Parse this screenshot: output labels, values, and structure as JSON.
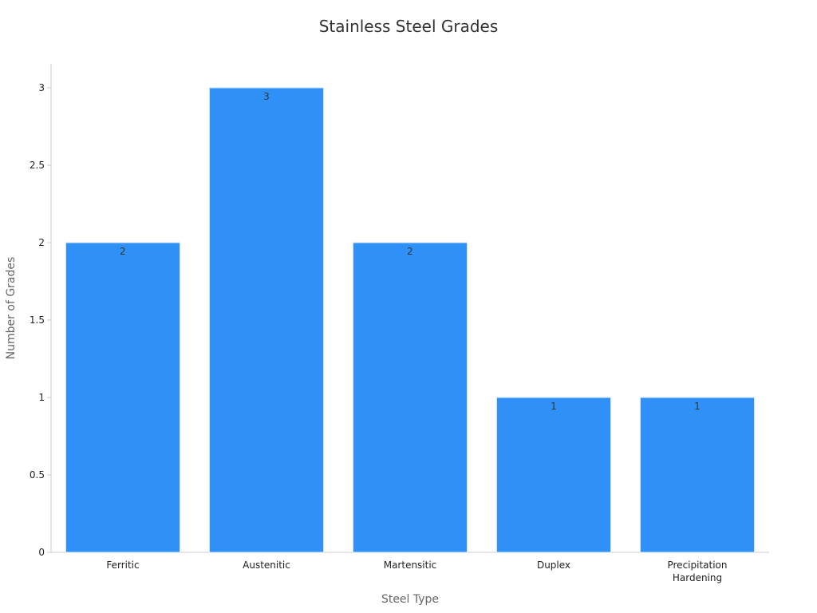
{
  "chart_data": {
    "type": "bar",
    "title": "Stainless Steel Grades",
    "xlabel": "Steel Type",
    "ylabel": "Number of Grades",
    "categories": [
      [
        "Ferritic"
      ],
      [
        "Austenitic"
      ],
      [
        "Martensitic"
      ],
      [
        "Duplex"
      ],
      [
        "Precipitation",
        "Hardening"
      ]
    ],
    "values": [
      2,
      3,
      2,
      1,
      1
    ],
    "data_labels": [
      "2",
      "3",
      "2",
      "1",
      "1"
    ],
    "ylim": [
      0,
      3
    ],
    "yticks": [
      {
        "value": 0,
        "label": "0"
      },
      {
        "value": 0.5,
        "label": "0.5"
      },
      {
        "value": 1,
        "label": "1"
      },
      {
        "value": 1.5,
        "label": "1.5"
      },
      {
        "value": 2,
        "label": "2"
      },
      {
        "value": 2.5,
        "label": "2.5"
      },
      {
        "value": 3,
        "label": "3"
      }
    ],
    "grid": false,
    "legend": "none",
    "colors": {
      "bar_fill": "#2f91f7",
      "bar_stroke": "#d9e6f5",
      "axis": "#cccccc",
      "title": "#333333",
      "axis_label": "#666666"
    }
  }
}
